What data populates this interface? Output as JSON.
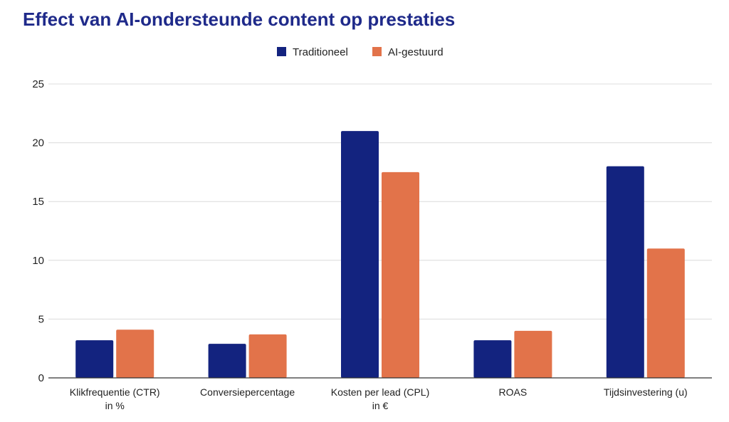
{
  "chart_data": {
    "type": "bar",
    "title": "Effect van AI-ondersteunde content op prestaties",
    "categories": [
      [
        "Klikfrequentie (CTR)",
        "in %"
      ],
      [
        "Conversiepercentage"
      ],
      [
        "Kosten per lead (CPL)",
        "in €"
      ],
      [
        "ROAS"
      ],
      [
        "Tijdsinvestering (u)"
      ]
    ],
    "series": [
      {
        "name": "Traditioneel",
        "color": "#13237f",
        "values": [
          3.2,
          2.9,
          21,
          3.2,
          18
        ]
      },
      {
        "name": "AI-gestuurd",
        "color": "#e2734a",
        "values": [
          4.1,
          3.7,
          17.5,
          4.0,
          11
        ]
      }
    ],
    "ylim": [
      0,
      25
    ],
    "yticks": [
      0,
      5,
      10,
      15,
      20,
      25
    ],
    "grid": true,
    "legend": "top-center",
    "colors": {
      "title": "#1f2a8a",
      "grid": "#dcdcdc",
      "axis": "#333333"
    }
  }
}
